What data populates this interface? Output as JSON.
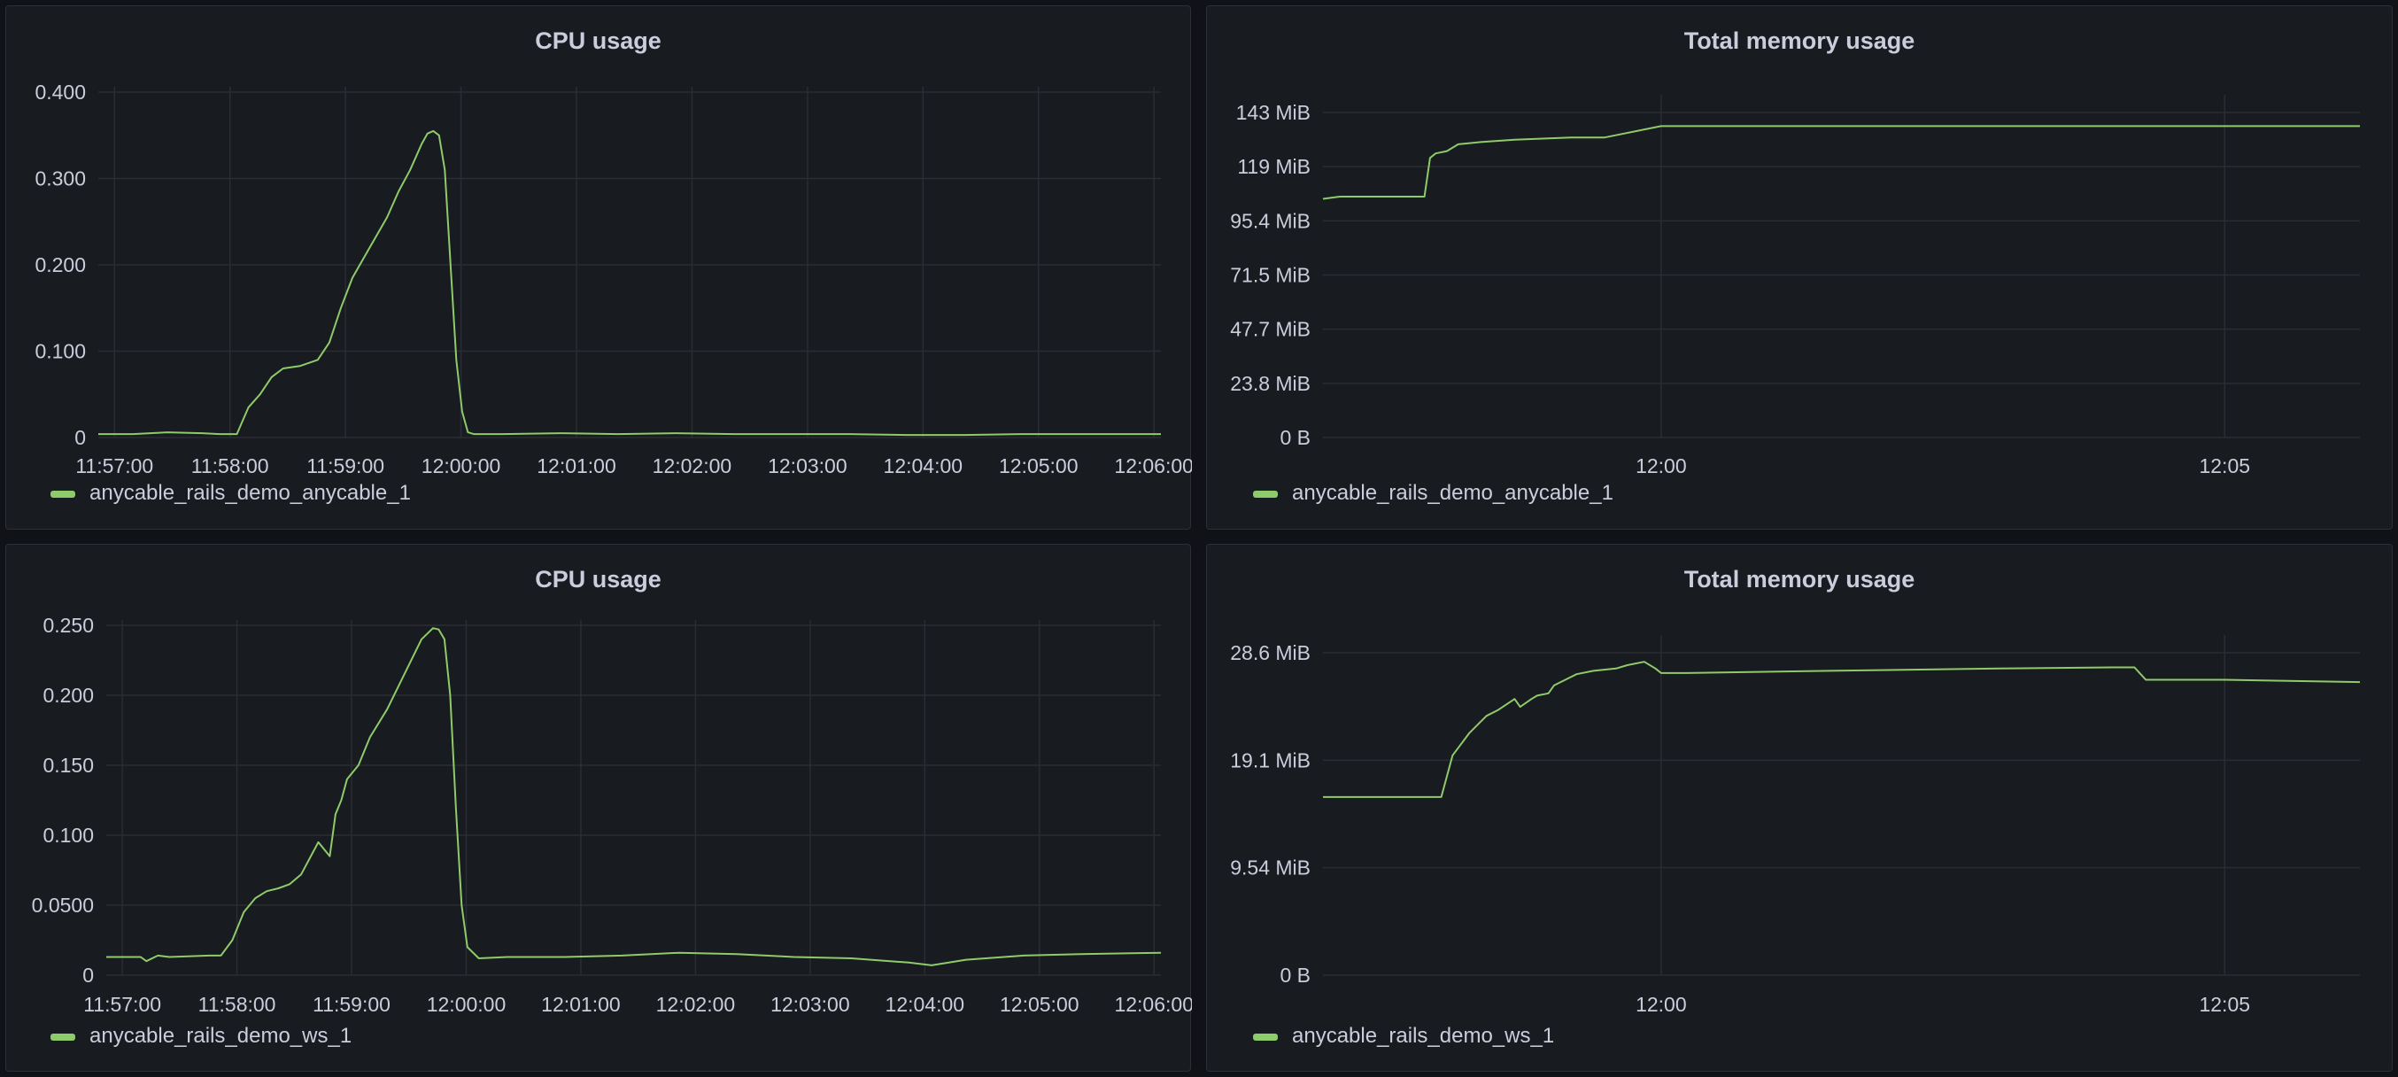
{
  "colors": {
    "series": "#8ecb6a",
    "grid": "#2a2d33",
    "text": "#ccccdc",
    "panel_bg": "#181b1f",
    "page_bg": "#111217"
  },
  "chart_data": [
    {
      "type": "line",
      "title": "CPU usage",
      "xlabel": "",
      "ylabel": "",
      "x_ticks": [
        "11:57:00",
        "11:58:00",
        "11:59:00",
        "12:00:00",
        "12:01:00",
        "12:02:00",
        "12:03:00",
        "12:04:00",
        "12:05:00",
        "12:06:00"
      ],
      "y_ticks": [
        "0",
        "0.100",
        "0.200",
        "0.300",
        "0.400"
      ],
      "ylim": [
        0,
        0.4
      ],
      "xlim_minutes": [
        0,
        9.2
      ],
      "legend_position": "bottom-left",
      "grid": true,
      "series": [
        {
          "name": "anycable_rails_demo_anycable_1",
          "x": [
            0,
            0.3,
            0.6,
            0.9,
            1.05,
            1.2,
            1.3,
            1.4,
            1.5,
            1.6,
            1.75,
            1.9,
            2.0,
            2.1,
            2.2,
            2.35,
            2.5,
            2.6,
            2.7,
            2.8,
            2.85,
            2.9,
            2.95,
            3.0,
            3.05,
            3.1,
            3.15,
            3.2,
            3.25,
            3.35,
            3.5,
            4.0,
            4.5,
            5.0,
            5.5,
            6.0,
            6.5,
            7.0,
            7.5,
            8.0,
            8.5,
            9.2
          ],
          "y": [
            0.004,
            0.004,
            0.006,
            0.005,
            0.004,
            0.004,
            0.035,
            0.05,
            0.07,
            0.08,
            0.083,
            0.09,
            0.11,
            0.15,
            0.185,
            0.22,
            0.255,
            0.285,
            0.31,
            0.34,
            0.352,
            0.355,
            0.35,
            0.31,
            0.2,
            0.09,
            0.03,
            0.006,
            0.004,
            0.004,
            0.004,
            0.005,
            0.004,
            0.005,
            0.004,
            0.004,
            0.004,
            0.003,
            0.003,
            0.004,
            0.004,
            0.004
          ]
        }
      ]
    },
    {
      "type": "line",
      "title": "Total memory usage",
      "xlabel": "",
      "ylabel": "",
      "x_ticks": [
        "12:00",
        "12:05"
      ],
      "y_ticks": [
        "0 B",
        "23.8 MiB",
        "47.7 MiB",
        "71.5 MiB",
        "95.4 MiB",
        "119 MiB",
        "143 MiB"
      ],
      "ylim": [
        0,
        143
      ],
      "xlim_minutes": [
        0,
        9.2
      ],
      "legend_position": "bottom-left",
      "grid": true,
      "series": [
        {
          "name": "anycable_rails_demo_anycable_1",
          "x": [
            0,
            0.15,
            0.9,
            0.95,
            1.0,
            1.1,
            1.2,
            1.4,
            1.7,
            2.2,
            2.5,
            3.0,
            4.0,
            5.0,
            6.0,
            7.0,
            8.0,
            9.2
          ],
          "y": [
            105,
            106,
            106,
            123,
            125,
            126,
            129,
            130,
            131,
            132,
            132,
            137,
            137,
            137,
            137,
            137,
            137,
            137
          ]
        }
      ]
    },
    {
      "type": "line",
      "title": "CPU usage",
      "xlabel": "",
      "ylabel": "",
      "x_ticks": [
        "11:57:00",
        "11:58:00",
        "11:59:00",
        "12:00:00",
        "12:01:00",
        "12:02:00",
        "12:03:00",
        "12:04:00",
        "12:05:00",
        "12:06:00"
      ],
      "y_ticks": [
        "0",
        "0.0500",
        "0.100",
        "0.150",
        "0.200",
        "0.250"
      ],
      "ylim": [
        0,
        0.25
      ],
      "xlim_minutes": [
        0,
        9.2
      ],
      "legend_position": "bottom-left",
      "grid": true,
      "series": [
        {
          "name": "anycable_rails_demo_ws_1",
          "x": [
            0,
            0.3,
            0.35,
            0.45,
            0.55,
            0.9,
            1.0,
            1.1,
            1.2,
            1.3,
            1.4,
            1.5,
            1.6,
            1.7,
            1.85,
            1.95,
            2.0,
            2.05,
            2.1,
            2.2,
            2.3,
            2.45,
            2.6,
            2.75,
            2.85,
            2.9,
            2.95,
            3.0,
            3.05,
            3.1,
            3.15,
            3.25,
            3.5,
            4.0,
            4.5,
            5.0,
            5.5,
            6.0,
            6.5,
            7.0,
            7.2,
            7.5,
            8.0,
            8.5,
            9.2
          ],
          "y": [
            0.013,
            0.013,
            0.01,
            0.014,
            0.013,
            0.014,
            0.014,
            0.025,
            0.045,
            0.055,
            0.06,
            0.062,
            0.065,
            0.072,
            0.095,
            0.085,
            0.115,
            0.125,
            0.14,
            0.15,
            0.17,
            0.19,
            0.215,
            0.24,
            0.248,
            0.247,
            0.24,
            0.2,
            0.12,
            0.05,
            0.02,
            0.012,
            0.013,
            0.013,
            0.014,
            0.016,
            0.015,
            0.013,
            0.012,
            0.009,
            0.007,
            0.011,
            0.014,
            0.015,
            0.016
          ]
        }
      ]
    },
    {
      "type": "line",
      "title": "Total memory usage",
      "xlabel": "",
      "ylabel": "",
      "x_ticks": [
        "12:00",
        "12:05"
      ],
      "y_ticks": [
        "0 B",
        "9.54 MiB",
        "19.1 MiB",
        "28.6 MiB"
      ],
      "ylim": [
        0,
        28.6
      ],
      "xlim_minutes": [
        0,
        9.2
      ],
      "legend_position": "bottom-left",
      "grid": true,
      "series": [
        {
          "name": "anycable_rails_demo_ws_1",
          "x": [
            0,
            1.05,
            1.15,
            1.3,
            1.45,
            1.55,
            1.7,
            1.75,
            1.85,
            1.9,
            2.0,
            2.05,
            2.15,
            2.25,
            2.4,
            2.6,
            2.7,
            2.85,
            2.95,
            3.0,
            3.2,
            4.5,
            6.0,
            7.0,
            7.2,
            7.3,
            7.5,
            8.0,
            9.2
          ],
          "y": [
            15.8,
            15.8,
            19.5,
            21.5,
            23,
            23.5,
            24.5,
            23.8,
            24.5,
            24.8,
            25,
            25.7,
            26.2,
            26.7,
            27,
            27.2,
            27.5,
            27.8,
            27.2,
            26.8,
            26.8,
            27,
            27.2,
            27.3,
            27.3,
            26.2,
            26.2,
            26.2,
            26.0
          ]
        }
      ]
    }
  ]
}
